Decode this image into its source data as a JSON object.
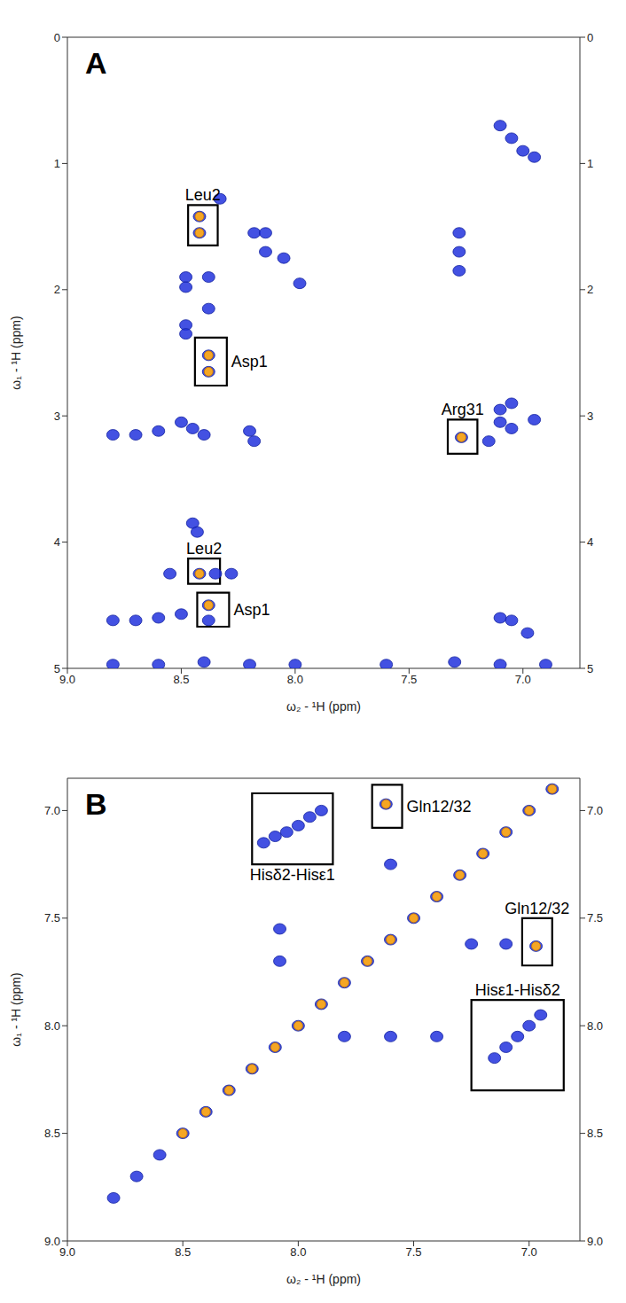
{
  "chart_data": [
    {
      "type": "scatter",
      "panel": "A",
      "xlabel": "ω₂ - ¹H (ppm)",
      "ylabel": "ω₁ - ¹H (ppm)",
      "xlim": [
        9.0,
        6.75
      ],
      "ylim": [
        5,
        0
      ],
      "xticks": [
        {
          "value": 9.0,
          "label": "9.0"
        },
        {
          "value": 8.5,
          "label": "8.5"
        },
        {
          "value": 8.0,
          "label": "8.0"
        },
        {
          "value": 7.5,
          "label": "7.5"
        },
        {
          "value": 7.0,
          "label": "7.0"
        }
      ],
      "yticks": [
        0,
        1,
        2,
        3,
        4,
        5
      ],
      "grid": false,
      "series": [
        {
          "color": "#2233dd",
          "marker": "circle",
          "x": [
            8.42,
            8.42,
            8.33,
            8.18,
            8.13,
            8.13,
            8.05,
            7.98,
            7.28,
            7.28,
            7.28,
            8.48,
            8.48,
            8.38,
            8.38,
            8.48,
            8.48,
            8.38,
            8.38,
            7.27,
            8.8,
            8.7,
            8.6,
            8.5,
            8.45,
            8.4,
            8.2,
            8.18,
            7.1,
            7.1,
            7.05,
            6.95,
            7.15,
            7.05,
            7.1,
            7.05,
            7.0,
            6.95,
            8.45,
            8.43,
            8.55,
            8.42,
            8.35,
            8.28,
            8.8,
            8.7,
            8.6,
            8.5,
            8.38,
            8.38,
            8.8,
            8.6,
            8.4,
            8.2,
            8.0,
            7.6,
            7.3,
            7.1,
            6.9,
            7.1,
            7.05,
            6.98
          ],
          "y": [
            1.42,
            1.55,
            1.28,
            1.55,
            1.55,
            1.7,
            1.75,
            1.95,
            1.55,
            1.7,
            1.85,
            1.9,
            1.98,
            1.9,
            2.15,
            2.28,
            2.35,
            2.52,
            2.65,
            3.17,
            3.15,
            3.15,
            3.12,
            3.05,
            3.1,
            3.15,
            3.12,
            3.2,
            2.95,
            3.05,
            3.1,
            3.03,
            3.2,
            2.9,
            0.7,
            0.8,
            0.9,
            0.95,
            3.85,
            3.92,
            4.25,
            4.25,
            4.25,
            4.25,
            4.62,
            4.62,
            4.6,
            4.57,
            4.5,
            4.62,
            4.97,
            4.97,
            4.95,
            4.97,
            4.97,
            4.97,
            4.95,
            4.97,
            4.97,
            4.6,
            4.62,
            4.72
          ]
        },
        {
          "color": "#f5a623",
          "marker": "circle",
          "x": [
            8.42,
            8.42,
            8.38,
            8.38,
            7.27,
            8.42,
            8.38
          ],
          "y": [
            1.42,
            1.55,
            2.52,
            2.65,
            3.17,
            4.25,
            4.5
          ]
        }
      ],
      "annotations": [
        {
          "text": "Leu2",
          "x": [
            8.47,
            8.34
          ],
          "y": [
            1.33,
            1.65
          ]
        },
        {
          "text": "Asp1",
          "x": [
            8.44,
            8.3
          ],
          "y": [
            2.38,
            2.76
          ]
        },
        {
          "text": "Arg31",
          "x": [
            7.33,
            7.2
          ],
          "y": [
            3.03,
            3.3
          ]
        },
        {
          "text": "Leu2",
          "x": [
            8.47,
            8.33
          ],
          "y": [
            4.13,
            4.33
          ]
        },
        {
          "text": "Asp1",
          "x": [
            8.43,
            8.29
          ],
          "y": [
            4.4,
            4.67
          ]
        }
      ]
    },
    {
      "type": "scatter",
      "panel": "B",
      "xlabel": "ω₂ - ¹H (ppm)",
      "ylabel": "ω₁ - ¹H (ppm)",
      "xlim": [
        9.0,
        6.78
      ],
      "ylim": [
        9.0,
        6.85
      ],
      "xticks": [
        {
          "value": 9.0,
          "label": "9.0"
        },
        {
          "value": 8.5,
          "label": "8.5"
        },
        {
          "value": 8.0,
          "label": "8.0"
        },
        {
          "value": 7.5,
          "label": "7.5"
        },
        {
          "value": 7.0,
          "label": "7.0"
        }
      ],
      "yticks": [
        {
          "value": 7.0,
          "label": "7.0"
        },
        {
          "value": 7.5,
          "label": "7.5"
        },
        {
          "value": 8.0,
          "label": "8.0"
        },
        {
          "value": 8.5,
          "label": "8.5"
        },
        {
          "value": 9.0,
          "label": "9.0"
        }
      ],
      "grid": false,
      "series": [
        {
          "color": "#2233dd",
          "marker": "circle",
          "x": [
            8.15,
            8.1,
            8.05,
            8.0,
            7.95,
            7.9,
            7.62,
            7.6,
            6.97,
            7.25,
            7.1,
            7.15,
            7.1,
            7.05,
            7.0,
            6.95,
            7.8,
            7.6,
            7.4,
            8.08,
            8.08,
            8.8,
            8.7,
            8.6,
            8.5,
            8.4,
            8.3,
            8.2,
            8.1,
            8.0,
            7.9,
            7.8,
            7.7,
            7.6,
            7.5,
            7.4,
            7.3,
            7.2,
            7.1,
            7.0,
            6.9
          ],
          "y": [
            7.15,
            7.12,
            7.1,
            7.07,
            7.03,
            7.0,
            6.97,
            7.25,
            7.63,
            7.62,
            7.62,
            8.15,
            8.1,
            8.05,
            8.0,
            7.95,
            8.05,
            8.05,
            8.05,
            7.55,
            7.7,
            8.8,
            8.7,
            8.6,
            8.5,
            8.4,
            8.3,
            8.2,
            8.1,
            8.0,
            7.9,
            7.8,
            7.7,
            7.6,
            7.5,
            7.4,
            7.3,
            7.2,
            7.1,
            7.0,
            6.9
          ]
        },
        {
          "color": "#f5a623",
          "marker": "circle",
          "x": [
            7.62,
            6.97,
            8.5,
            8.4,
            8.3,
            8.2,
            8.1,
            8.0,
            7.9,
            7.8,
            7.7,
            7.6,
            7.5,
            7.4,
            7.3,
            7.2,
            7.1,
            7.0,
            6.9
          ],
          "y": [
            6.97,
            7.63,
            8.5,
            8.4,
            8.3,
            8.2,
            8.1,
            8.0,
            7.9,
            7.8,
            7.7,
            7.6,
            7.5,
            7.4,
            7.3,
            7.2,
            7.1,
            7.0,
            6.9
          ]
        }
      ],
      "annotations": [
        {
          "text": "Hisδ2-Hisε1",
          "x": [
            8.2,
            7.85
          ],
          "y": [
            6.92,
            7.25
          ]
        },
        {
          "text": "Gln12/32",
          "x": [
            7.68,
            7.55
          ],
          "y": [
            6.88,
            7.08
          ]
        },
        {
          "text": "Gln12/32",
          "x": [
            7.03,
            6.9
          ],
          "y": [
            7.5,
            7.72
          ]
        },
        {
          "text": "Hisε1-Hisδ2",
          "x": [
            7.25,
            6.85
          ],
          "y": [
            7.88,
            8.3
          ]
        }
      ]
    }
  ]
}
